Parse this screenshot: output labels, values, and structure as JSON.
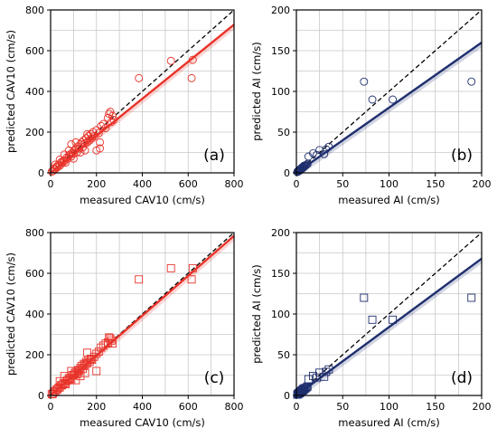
{
  "chart_data": [
    {
      "type": "scatter",
      "panel_label": "(a)",
      "xlabel": "measured CAV10 (cm/s)",
      "ylabel": "predicted CAV10 (cm/s)",
      "xlim": [
        0,
        800
      ],
      "ylim": [
        0,
        800
      ],
      "xticks": [
        "0",
        "200",
        "400",
        "600",
        "800"
      ],
      "yticks": [
        "0",
        "200",
        "400",
        "600",
        "800"
      ],
      "grid": true,
      "marker": "circle",
      "color": "#e8332a",
      "line_color": "#e8332a",
      "reference_line": {
        "style": "dashed",
        "slope": 1
      },
      "fit_line": {
        "slope": 0.91
      },
      "points": [
        [
          5,
          6
        ],
        [
          10,
          9
        ],
        [
          15,
          20
        ],
        [
          20,
          18
        ],
        [
          25,
          30
        ],
        [
          30,
          28
        ],
        [
          35,
          40
        ],
        [
          40,
          35
        ],
        [
          45,
          52
        ],
        [
          50,
          48
        ],
        [
          55,
          60
        ],
        [
          60,
          58
        ],
        [
          65,
          50
        ],
        [
          70,
          75
        ],
        [
          75,
          70
        ],
        [
          80,
          85
        ],
        [
          85,
          90
        ],
        [
          90,
          80
        ],
        [
          95,
          100
        ],
        [
          100,
          95
        ],
        [
          105,
          110
        ],
        [
          110,
          120
        ],
        [
          115,
          100
        ],
        [
          120,
          130
        ],
        [
          125,
          120
        ],
        [
          130,
          140
        ],
        [
          135,
          150
        ],
        [
          140,
          125
        ],
        [
          145,
          160
        ],
        [
          150,
          145
        ],
        [
          155,
          170
        ],
        [
          160,
          150
        ],
        [
          165,
          180
        ],
        [
          170,
          160
        ],
        [
          175,
          190
        ],
        [
          180,
          170
        ],
        [
          185,
          200
        ],
        [
          190,
          180
        ],
        [
          200,
          210
        ],
        [
          210,
          195
        ],
        [
          215,
          150
        ],
        [
          220,
          230
        ],
        [
          230,
          240
        ],
        [
          240,
          220
        ],
        [
          250,
          270
        ],
        [
          255,
          290
        ],
        [
          260,
          300
        ],
        [
          265,
          250
        ],
        [
          270,
          280
        ],
        [
          275,
          260
        ],
        [
          130,
          100
        ],
        [
          100,
          70
        ],
        [
          150,
          110
        ],
        [
          20,
          40
        ],
        [
          40,
          65
        ],
        [
          60,
          90
        ],
        [
          80,
          110
        ],
        [
          90,
          140
        ],
        [
          200,
          110
        ],
        [
          215,
          120
        ],
        [
          385,
          465
        ],
        [
          525,
          550
        ],
        [
          615,
          465
        ],
        [
          620,
          555
        ],
        [
          110,
          150
        ],
        [
          160,
          190
        ]
      ]
    },
    {
      "type": "scatter",
      "panel_label": "(b)",
      "xlabel": "measured AI (cm/s)",
      "ylabel": "predicted  AI (cm/s)",
      "xlim": [
        0,
        200
      ],
      "ylim": [
        0,
        200
      ],
      "xticks": [
        "0",
        "50",
        "100",
        "150",
        "200"
      ],
      "yticks": [
        "0",
        "50",
        "100",
        "150",
        "200"
      ],
      "grid": true,
      "marker": "circle",
      "color": "#1f2f6e",
      "line_color": "#1f2f6e",
      "reference_line": {
        "style": "dashed",
        "slope": 1
      },
      "fit_line": {
        "slope": 0.8
      },
      "points": [
        [
          1,
          1
        ],
        [
          1.5,
          2
        ],
        [
          2,
          1.5
        ],
        [
          2.5,
          3
        ],
        [
          3,
          2.5
        ],
        [
          3.5,
          4
        ],
        [
          4,
          3
        ],
        [
          4.5,
          5
        ],
        [
          5,
          4.5
        ],
        [
          5.5,
          6
        ],
        [
          6,
          5
        ],
        [
          6.5,
          7
        ],
        [
          7,
          6
        ],
        [
          7.5,
          8
        ],
        [
          8,
          7
        ],
        [
          8.5,
          9
        ],
        [
          9,
          8
        ],
        [
          10,
          9
        ],
        [
          11,
          10
        ],
        [
          12,
          11
        ],
        [
          13,
          20
        ],
        [
          18,
          24
        ],
        [
          22,
          22
        ],
        [
          25,
          28
        ],
        [
          30,
          23
        ],
        [
          32,
          29
        ],
        [
          35,
          32
        ],
        [
          73,
          112
        ],
        [
          82,
          90
        ],
        [
          104,
          90
        ],
        [
          189,
          112
        ]
      ]
    },
    {
      "type": "scatter",
      "panel_label": "(c)",
      "xlabel": "measured CAV10 (cm/s)",
      "ylabel": "predicted CAV10 (cm/s)",
      "xlim": [
        0,
        800
      ],
      "ylim": [
        0,
        800
      ],
      "xticks": [
        "0",
        "200",
        "400",
        "600",
        "800"
      ],
      "yticks": [
        "0",
        "200",
        "400",
        "600",
        "800"
      ],
      "grid": true,
      "marker": "square",
      "color": "#e8332a",
      "line_color": "#e8332a",
      "reference_line": {
        "style": "dashed",
        "slope": 1
      },
      "fit_line": {
        "slope": 0.98
      },
      "points": [
        [
          5,
          6
        ],
        [
          10,
          9
        ],
        [
          15,
          18
        ],
        [
          20,
          20
        ],
        [
          25,
          28
        ],
        [
          30,
          30
        ],
        [
          35,
          38
        ],
        [
          40,
          40
        ],
        [
          45,
          50
        ],
        [
          50,
          50
        ],
        [
          55,
          58
        ],
        [
          60,
          60
        ],
        [
          65,
          55
        ],
        [
          70,
          72
        ],
        [
          75,
          75
        ],
        [
          80,
          85
        ],
        [
          85,
          85
        ],
        [
          90,
          80
        ],
        [
          95,
          100
        ],
        [
          100,
          98
        ],
        [
          105,
          108
        ],
        [
          110,
          115
        ],
        [
          115,
          105
        ],
        [
          120,
          125
        ],
        [
          125,
          120
        ],
        [
          130,
          135
        ],
        [
          135,
          145
        ],
        [
          140,
          130
        ],
        [
          145,
          155
        ],
        [
          150,
          150
        ],
        [
          155,
          165
        ],
        [
          160,
          158
        ],
        [
          165,
          175
        ],
        [
          170,
          165
        ],
        [
          175,
          180
        ],
        [
          180,
          175
        ],
        [
          190,
          190
        ],
        [
          200,
          205
        ],
        [
          210,
          215
        ],
        [
          220,
          235
        ],
        [
          230,
          245
        ],
        [
          240,
          255
        ],
        [
          250,
          260
        ],
        [
          255,
          285
        ],
        [
          260,
          280
        ],
        [
          265,
          270
        ],
        [
          270,
          255
        ],
        [
          160,
          210
        ],
        [
          150,
          110
        ],
        [
          130,
          95
        ],
        [
          110,
          75
        ],
        [
          90,
          120
        ],
        [
          60,
          95
        ],
        [
          40,
          70
        ],
        [
          200,
          120
        ],
        [
          385,
          570
        ],
        [
          525,
          625
        ],
        [
          615,
          570
        ],
        [
          620,
          625
        ]
      ]
    },
    {
      "type": "scatter",
      "panel_label": "(d)",
      "xlabel": "measured AI (cm/s)",
      "ylabel": "predicted  AI (cm/s)",
      "xlim": [
        0,
        200
      ],
      "ylim": [
        0,
        200
      ],
      "xticks": [
        "0",
        "50",
        "100",
        "150",
        "200"
      ],
      "yticks": [
        "0",
        "50",
        "100",
        "150",
        "200"
      ],
      "grid": true,
      "marker": "square",
      "color": "#1f2f6e",
      "line_color": "#1f2f6e",
      "reference_line": {
        "style": "dashed",
        "slope": 1
      },
      "fit_line": {
        "slope": 0.84
      },
      "points": [
        [
          1,
          1
        ],
        [
          1.5,
          2
        ],
        [
          2,
          1.5
        ],
        [
          2.5,
          3
        ],
        [
          3,
          2.5
        ],
        [
          3.5,
          4
        ],
        [
          4,
          3
        ],
        [
          4.5,
          5
        ],
        [
          5,
          4.5
        ],
        [
          5.5,
          6
        ],
        [
          6,
          5
        ],
        [
          6.5,
          7
        ],
        [
          7,
          6
        ],
        [
          7.5,
          8
        ],
        [
          8,
          7
        ],
        [
          8.5,
          9
        ],
        [
          9,
          8
        ],
        [
          10,
          9
        ],
        [
          11,
          10
        ],
        [
          12,
          11
        ],
        [
          13,
          20
        ],
        [
          18,
          24
        ],
        [
          22,
          22
        ],
        [
          25,
          28
        ],
        [
          30,
          23
        ],
        [
          32,
          29
        ],
        [
          35,
          32
        ],
        [
          73,
          120
        ],
        [
          82,
          93
        ],
        [
          104,
          93
        ],
        [
          189,
          120
        ]
      ]
    }
  ]
}
